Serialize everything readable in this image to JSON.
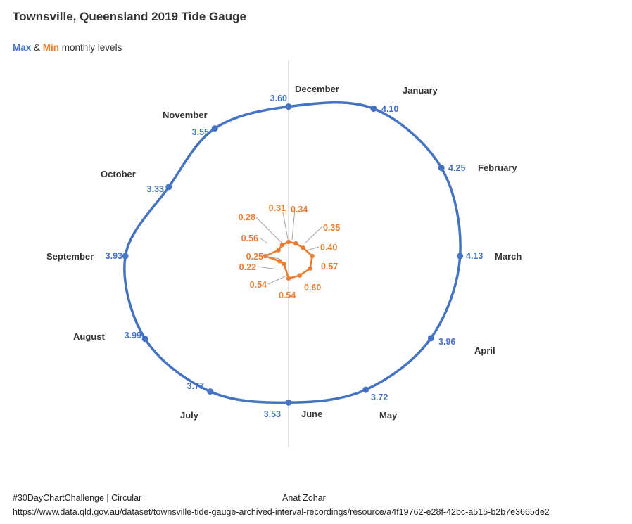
{
  "title": "Townsville, Queensland 2019 Tide Gauge",
  "subtitle": {
    "max_word": "Max",
    "amp": " & ",
    "min_word": "Min",
    "rest": " monthly levels"
  },
  "footer": {
    "left": "#30DayChartChallenge  |  Circular",
    "author": "Anat Zohar",
    "url": "https://www.data.qld.gov.au/dataset/townsville-tide-gauge-archived-interval-recordings/resource/a4f19762-e28f-42bc-a515-b2b7e3665de2"
  },
  "chart_data": {
    "type": "radar",
    "categories": [
      "December",
      "January",
      "February",
      "March",
      "April",
      "May",
      "June",
      "July",
      "August",
      "September",
      "October",
      "November"
    ],
    "series": [
      {
        "name": "Max",
        "color": "#4472C4",
        "values": [
          3.6,
          4.1,
          4.25,
          4.13,
          3.96,
          3.72,
          3.53,
          3.77,
          3.99,
          3.93,
          3.33,
          3.55
        ]
      },
      {
        "name": "Min",
        "color": "#ED7D31",
        "values": [
          0.34,
          0.35,
          0.4,
          0.57,
          0.6,
          0.54,
          0.54,
          0.22,
          0.25,
          0.56,
          0.28,
          0.31
        ]
      }
    ]
  }
}
